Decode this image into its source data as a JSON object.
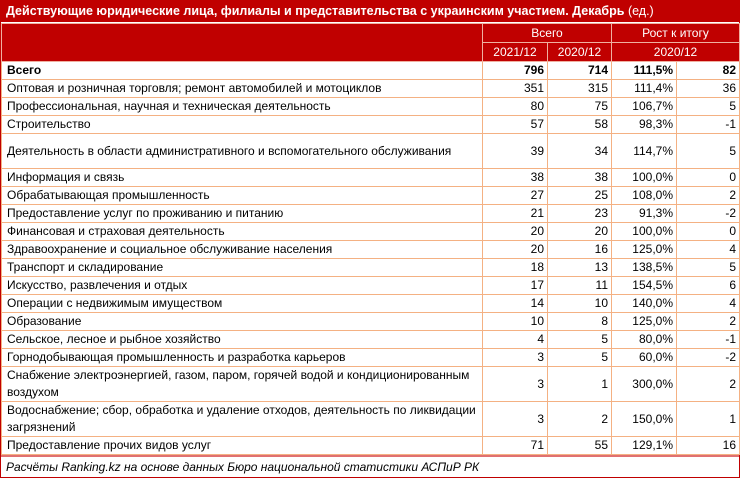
{
  "title": "Действующие юридические лица, филиалы и представительства с украинским участием. Декабрь",
  "unit": "(ед.)",
  "headers": {
    "total": "Всего",
    "growth": "Рост к итогу",
    "y2021": "2021/12",
    "y2020": "2020/12",
    "g2020": "2020/12"
  },
  "rows": [
    {
      "label": "Всего",
      "v2021": "796",
      "v2020": "714",
      "pct": "111,5%",
      "diff": "82"
    },
    {
      "label": "Оптовая и розничная торговля; ремонт автомобилей и мотоциклов",
      "v2021": "351",
      "v2020": "315",
      "pct": "111,4%",
      "diff": "36"
    },
    {
      "label": "Профессиональная, научная и техническая деятельность",
      "v2021": "80",
      "v2020": "75",
      "pct": "106,7%",
      "diff": "5"
    },
    {
      "label": "Строительство",
      "v2021": "57",
      "v2020": "58",
      "pct": "98,3%",
      "diff": "-1"
    },
    {
      "label": "Деятельность в области административного и вспомогательного обслуживания",
      "v2021": "39",
      "v2020": "34",
      "pct": "114,7%",
      "diff": "5"
    },
    {
      "label": "Информация и связь",
      "v2021": "38",
      "v2020": "38",
      "pct": "100,0%",
      "diff": "0"
    },
    {
      "label": "Обрабатывающая промышленность",
      "v2021": "27",
      "v2020": "25",
      "pct": "108,0%",
      "diff": "2"
    },
    {
      "label": "Предоставление услуг по проживанию и питанию",
      "v2021": "21",
      "v2020": "23",
      "pct": "91,3%",
      "diff": "-2"
    },
    {
      "label": "Финансовая и страховая деятельность",
      "v2021": "20",
      "v2020": "20",
      "pct": "100,0%",
      "diff": "0"
    },
    {
      "label": "Здравоохранение и социальное обслуживание населения",
      "v2021": "20",
      "v2020": "16",
      "pct": "125,0%",
      "diff": "4"
    },
    {
      "label": "Транспорт и складирование",
      "v2021": "18",
      "v2020": "13",
      "pct": "138,5%",
      "diff": "5"
    },
    {
      "label": "Искусство, развлечения и отдых",
      "v2021": "17",
      "v2020": "11",
      "pct": "154,5%",
      "diff": "6"
    },
    {
      "label": "Операции с недвижимым имуществом",
      "v2021": "14",
      "v2020": "10",
      "pct": "140,0%",
      "diff": "4"
    },
    {
      "label": "Образование",
      "v2021": "10",
      "v2020": "8",
      "pct": "125,0%",
      "diff": "2"
    },
    {
      "label": "Сельское, лесное и рыбное хозяйство",
      "v2021": "4",
      "v2020": "5",
      "pct": "80,0%",
      "diff": "-1"
    },
    {
      "label": "Горнодобывающая промышленность и разработка карьеров",
      "v2021": "3",
      "v2020": "5",
      "pct": "60,0%",
      "diff": "-2"
    },
    {
      "label": "Снабжение электроэнергией, газом, паром, горячей водой и кондиционированным воздухом",
      "v2021": "3",
      "v2020": "1",
      "pct": "300,0%",
      "diff": "2"
    },
    {
      "label": "Водоснабжение; сбор, обработка и удаление отходов, деятельность по ликвидации загрязнений",
      "v2021": "3",
      "v2020": "2",
      "pct": "150,0%",
      "diff": "1"
    },
    {
      "label": "Предоставление прочих видов услуг",
      "v2021": "71",
      "v2020": "55",
      "pct": "129,1%",
      "diff": "16"
    }
  ],
  "footer": "Расчёты Ranking.kz на основе данных Бюро национальной статистики АСПиР РК",
  "colors": {
    "header": "#c00000",
    "border": "#f4b183"
  }
}
